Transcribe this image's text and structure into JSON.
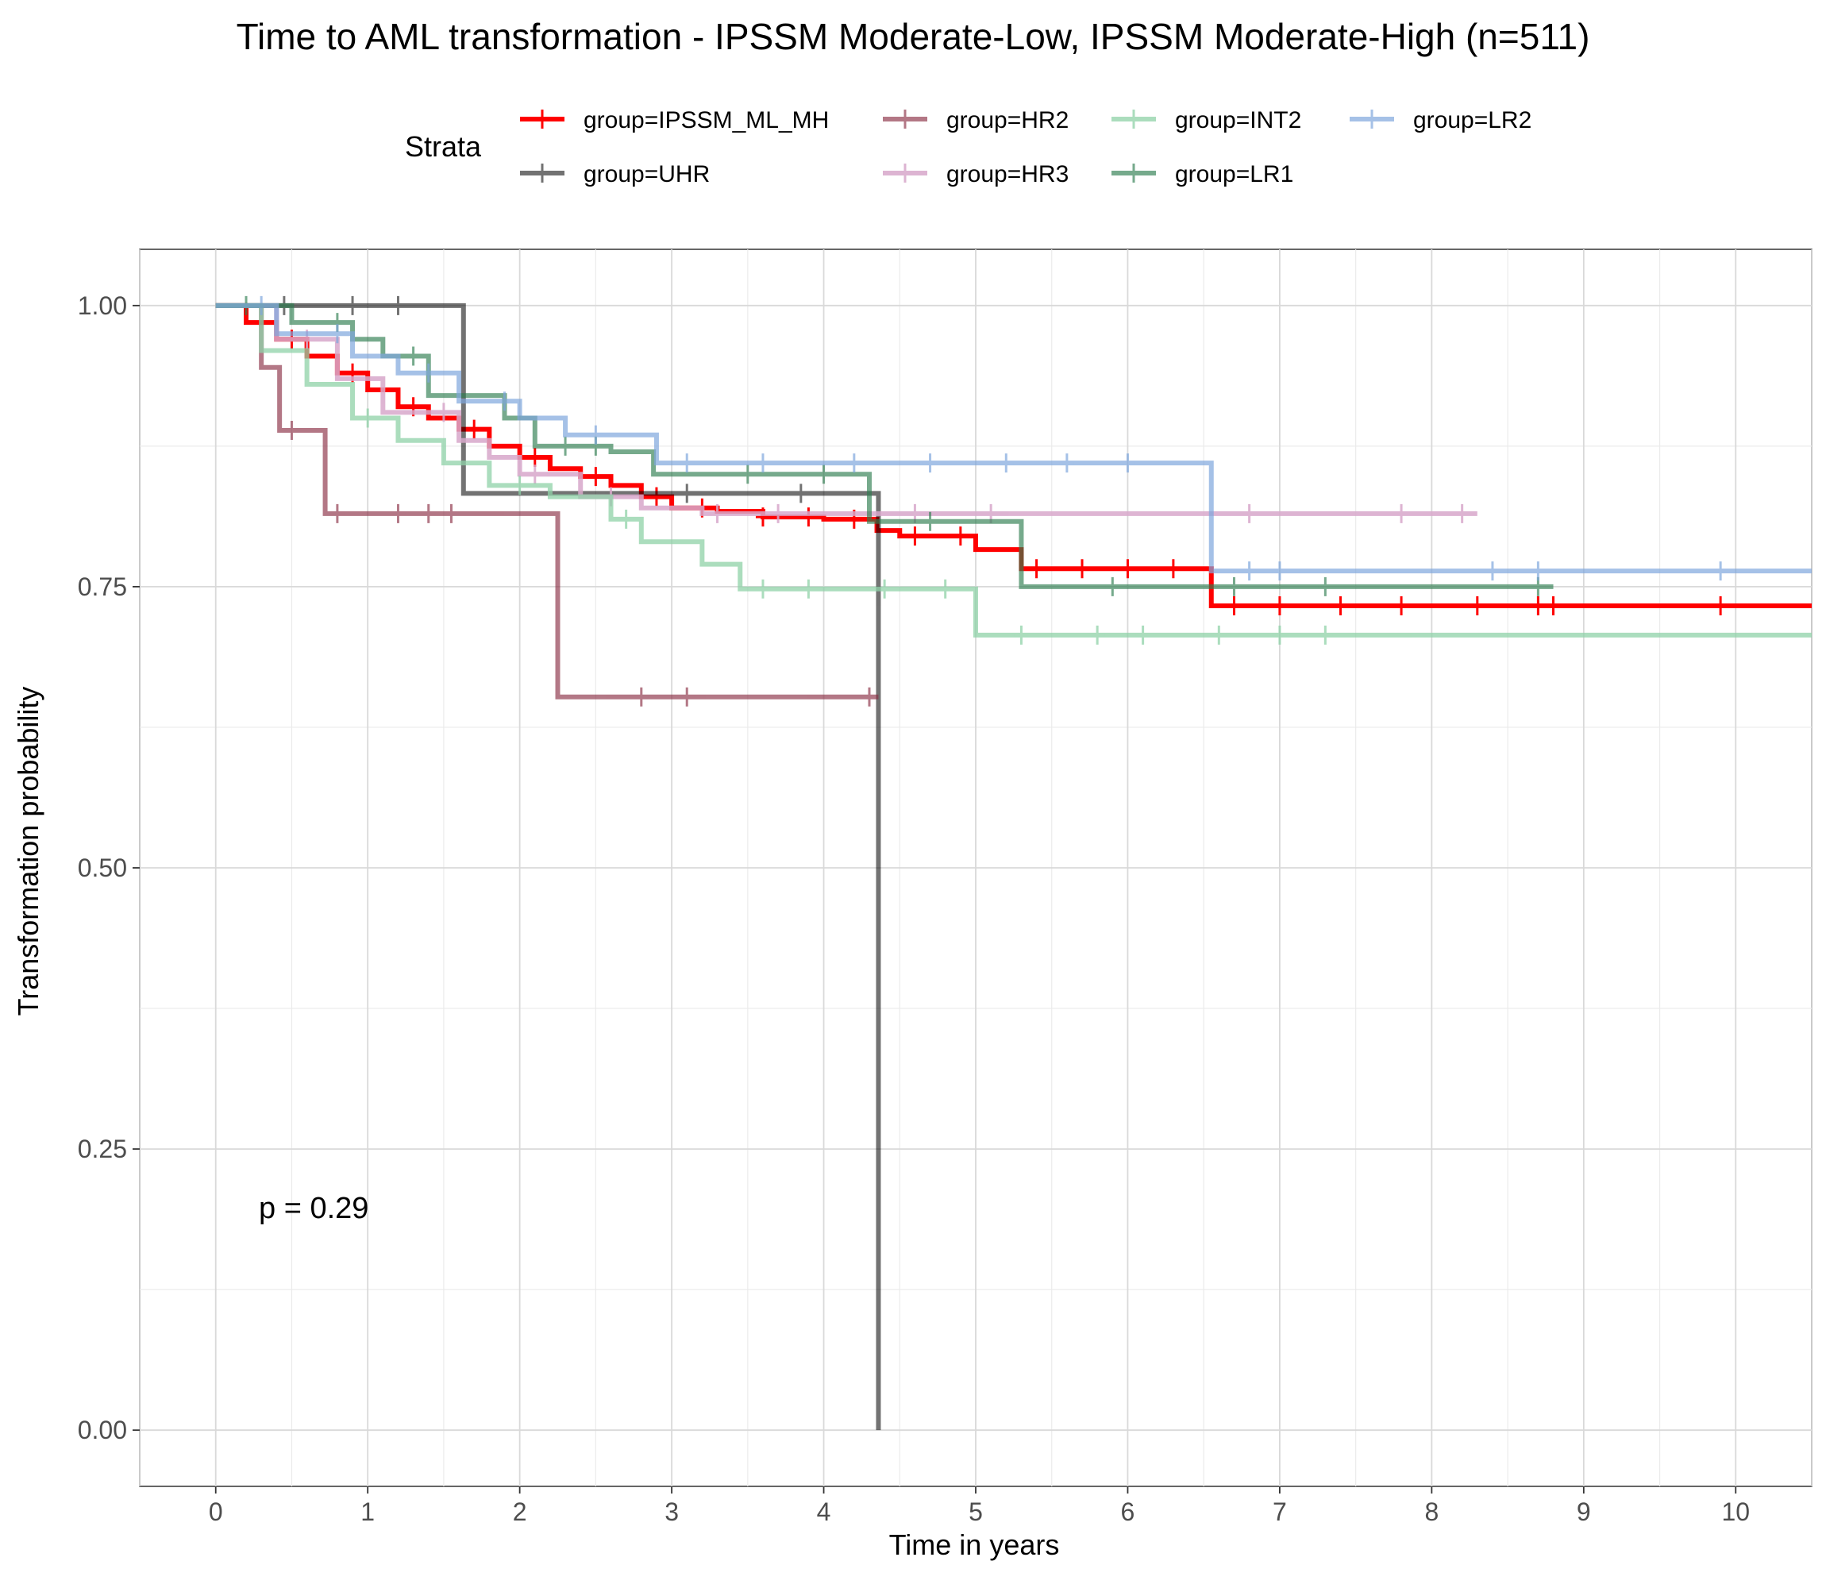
{
  "chart_data": {
    "type": "line",
    "step": true,
    "title": "Time to AML transformation - IPSSM Moderate-Low, IPSSM Moderate-High (n=511)",
    "xlabel": "Time in years",
    "ylabel": "Transformation probability",
    "xlim": [
      -0.5,
      10.5
    ],
    "ylim": [
      -0.05,
      1.05
    ],
    "x_ticks": [
      0,
      1,
      2,
      3,
      4,
      5,
      6,
      7,
      8,
      9,
      10
    ],
    "y_ticks": [
      0.0,
      0.25,
      0.5,
      0.75,
      1.0
    ],
    "y_tick_labels": [
      "0.00",
      "0.25",
      "0.50",
      "0.75",
      "1.00"
    ],
    "grid": true,
    "legend": {
      "title": "Strata",
      "placement": "top"
    },
    "annotation": "p = 0.29",
    "series": [
      {
        "name": "group=IPSSM_ML_MH",
        "color": "#ff0000",
        "opacity": 1.0,
        "x": [
          0,
          0.2,
          0.4,
          0.6,
          0.8,
          1.0,
          1.2,
          1.4,
          1.6,
          1.8,
          2.0,
          2.2,
          2.4,
          2.6,
          2.8,
          3.0,
          3.3,
          3.6,
          4.0,
          4.35,
          4.5,
          5.0,
          5.3,
          6.55,
          10.5
        ],
        "y": [
          1.0,
          0.985,
          0.97,
          0.955,
          0.94,
          0.925,
          0.91,
          0.9,
          0.89,
          0.875,
          0.865,
          0.855,
          0.848,
          0.84,
          0.83,
          0.82,
          0.817,
          0.812,
          0.81,
          0.8,
          0.795,
          0.783,
          0.766,
          0.733,
          0.733
        ],
        "censor_x": [
          0.5,
          0.9,
          1.3,
          1.7,
          2.1,
          2.5,
          2.9,
          3.2,
          3.6,
          3.9,
          4.2,
          4.6,
          4.9,
          5.4,
          5.7,
          6.0,
          6.3,
          6.7,
          7.0,
          7.4,
          7.8,
          8.3,
          8.7,
          8.8,
          9.9
        ]
      },
      {
        "name": "group=UHR",
        "color": "#000000",
        "opacity": 0.55,
        "x": [
          0,
          1.63,
          4.36,
          4.36
        ],
        "y": [
          1.0,
          0.833,
          0.833,
          0.0
        ],
        "censor_x": [
          0.45,
          0.9,
          1.2,
          3.1,
          3.85
        ]
      },
      {
        "name": "group=HR2",
        "color": "#8b2f45",
        "opacity": 0.65,
        "x": [
          0,
          0.3,
          0.42,
          0.72,
          2.25,
          4.36
        ],
        "y": [
          1.0,
          0.945,
          0.889,
          0.815,
          0.652,
          0.652
        ],
        "censor_x": [
          0.5,
          0.8,
          1.2,
          1.4,
          1.55,
          2.8,
          3.1,
          4.3
        ]
      },
      {
        "name": "group=HR3",
        "color": "#d8a8cb",
        "opacity": 0.85,
        "x": [
          0,
          0.4,
          0.8,
          1.1,
          1.6,
          1.8,
          2.0,
          2.4,
          2.8,
          3.2,
          4.4,
          8.3
        ],
        "y": [
          1.0,
          0.97,
          0.935,
          0.905,
          0.88,
          0.865,
          0.85,
          0.83,
          0.82,
          0.815,
          0.815,
          0.815
        ],
        "censor_x": [
          0.6,
          1.5,
          2.1,
          2.6,
          3.3,
          3.7,
          4.6,
          5.1,
          6.8,
          7.8,
          8.2
        ]
      },
      {
        "name": "group=INT2",
        "color": "#8fd2a8",
        "opacity": 0.75,
        "x": [
          0,
          0.3,
          0.6,
          0.9,
          1.2,
          1.5,
          1.8,
          2.2,
          2.6,
          2.8,
          3.2,
          3.45,
          5.0,
          10.5
        ],
        "y": [
          1.0,
          0.96,
          0.93,
          0.9,
          0.88,
          0.86,
          0.84,
          0.83,
          0.81,
          0.79,
          0.77,
          0.748,
          0.707,
          0.707
        ],
        "censor_x": [
          1.0,
          2.0,
          2.7,
          3.6,
          3.9,
          4.4,
          4.8,
          5.3,
          5.8,
          6.1,
          6.6,
          7.0,
          7.3
        ]
      },
      {
        "name": "group=LR1",
        "color": "#2e7d4f",
        "opacity": 0.65,
        "x": [
          0,
          0.5,
          0.9,
          1.1,
          1.4,
          1.9,
          2.1,
          2.6,
          2.88,
          4.3,
          5.3,
          8.8
        ],
        "y": [
          1.0,
          0.985,
          0.97,
          0.955,
          0.92,
          0.9,
          0.875,
          0.87,
          0.85,
          0.808,
          0.75,
          0.75
        ],
        "censor_x": [
          0.2,
          0.8,
          1.3,
          2.3,
          2.5,
          3.5,
          4.0,
          4.7,
          5.9,
          6.7,
          7.3,
          8.7
        ]
      },
      {
        "name": "group=LR2",
        "color": "#7fa7dd",
        "opacity": 0.7,
        "x": [
          0,
          0.4,
          0.9,
          1.2,
          1.6,
          2.0,
          2.3,
          2.9,
          6.55,
          10.5
        ],
        "y": [
          1.0,
          0.975,
          0.955,
          0.94,
          0.915,
          0.9,
          0.885,
          0.86,
          0.764,
          0.764
        ],
        "censor_x": [
          0.3,
          0.8,
          1.4,
          1.9,
          2.5,
          3.1,
          3.6,
          4.2,
          4.7,
          5.2,
          5.6,
          6.0,
          6.8,
          7.0,
          8.4,
          8.7,
          9.9
        ]
      }
    ]
  }
}
